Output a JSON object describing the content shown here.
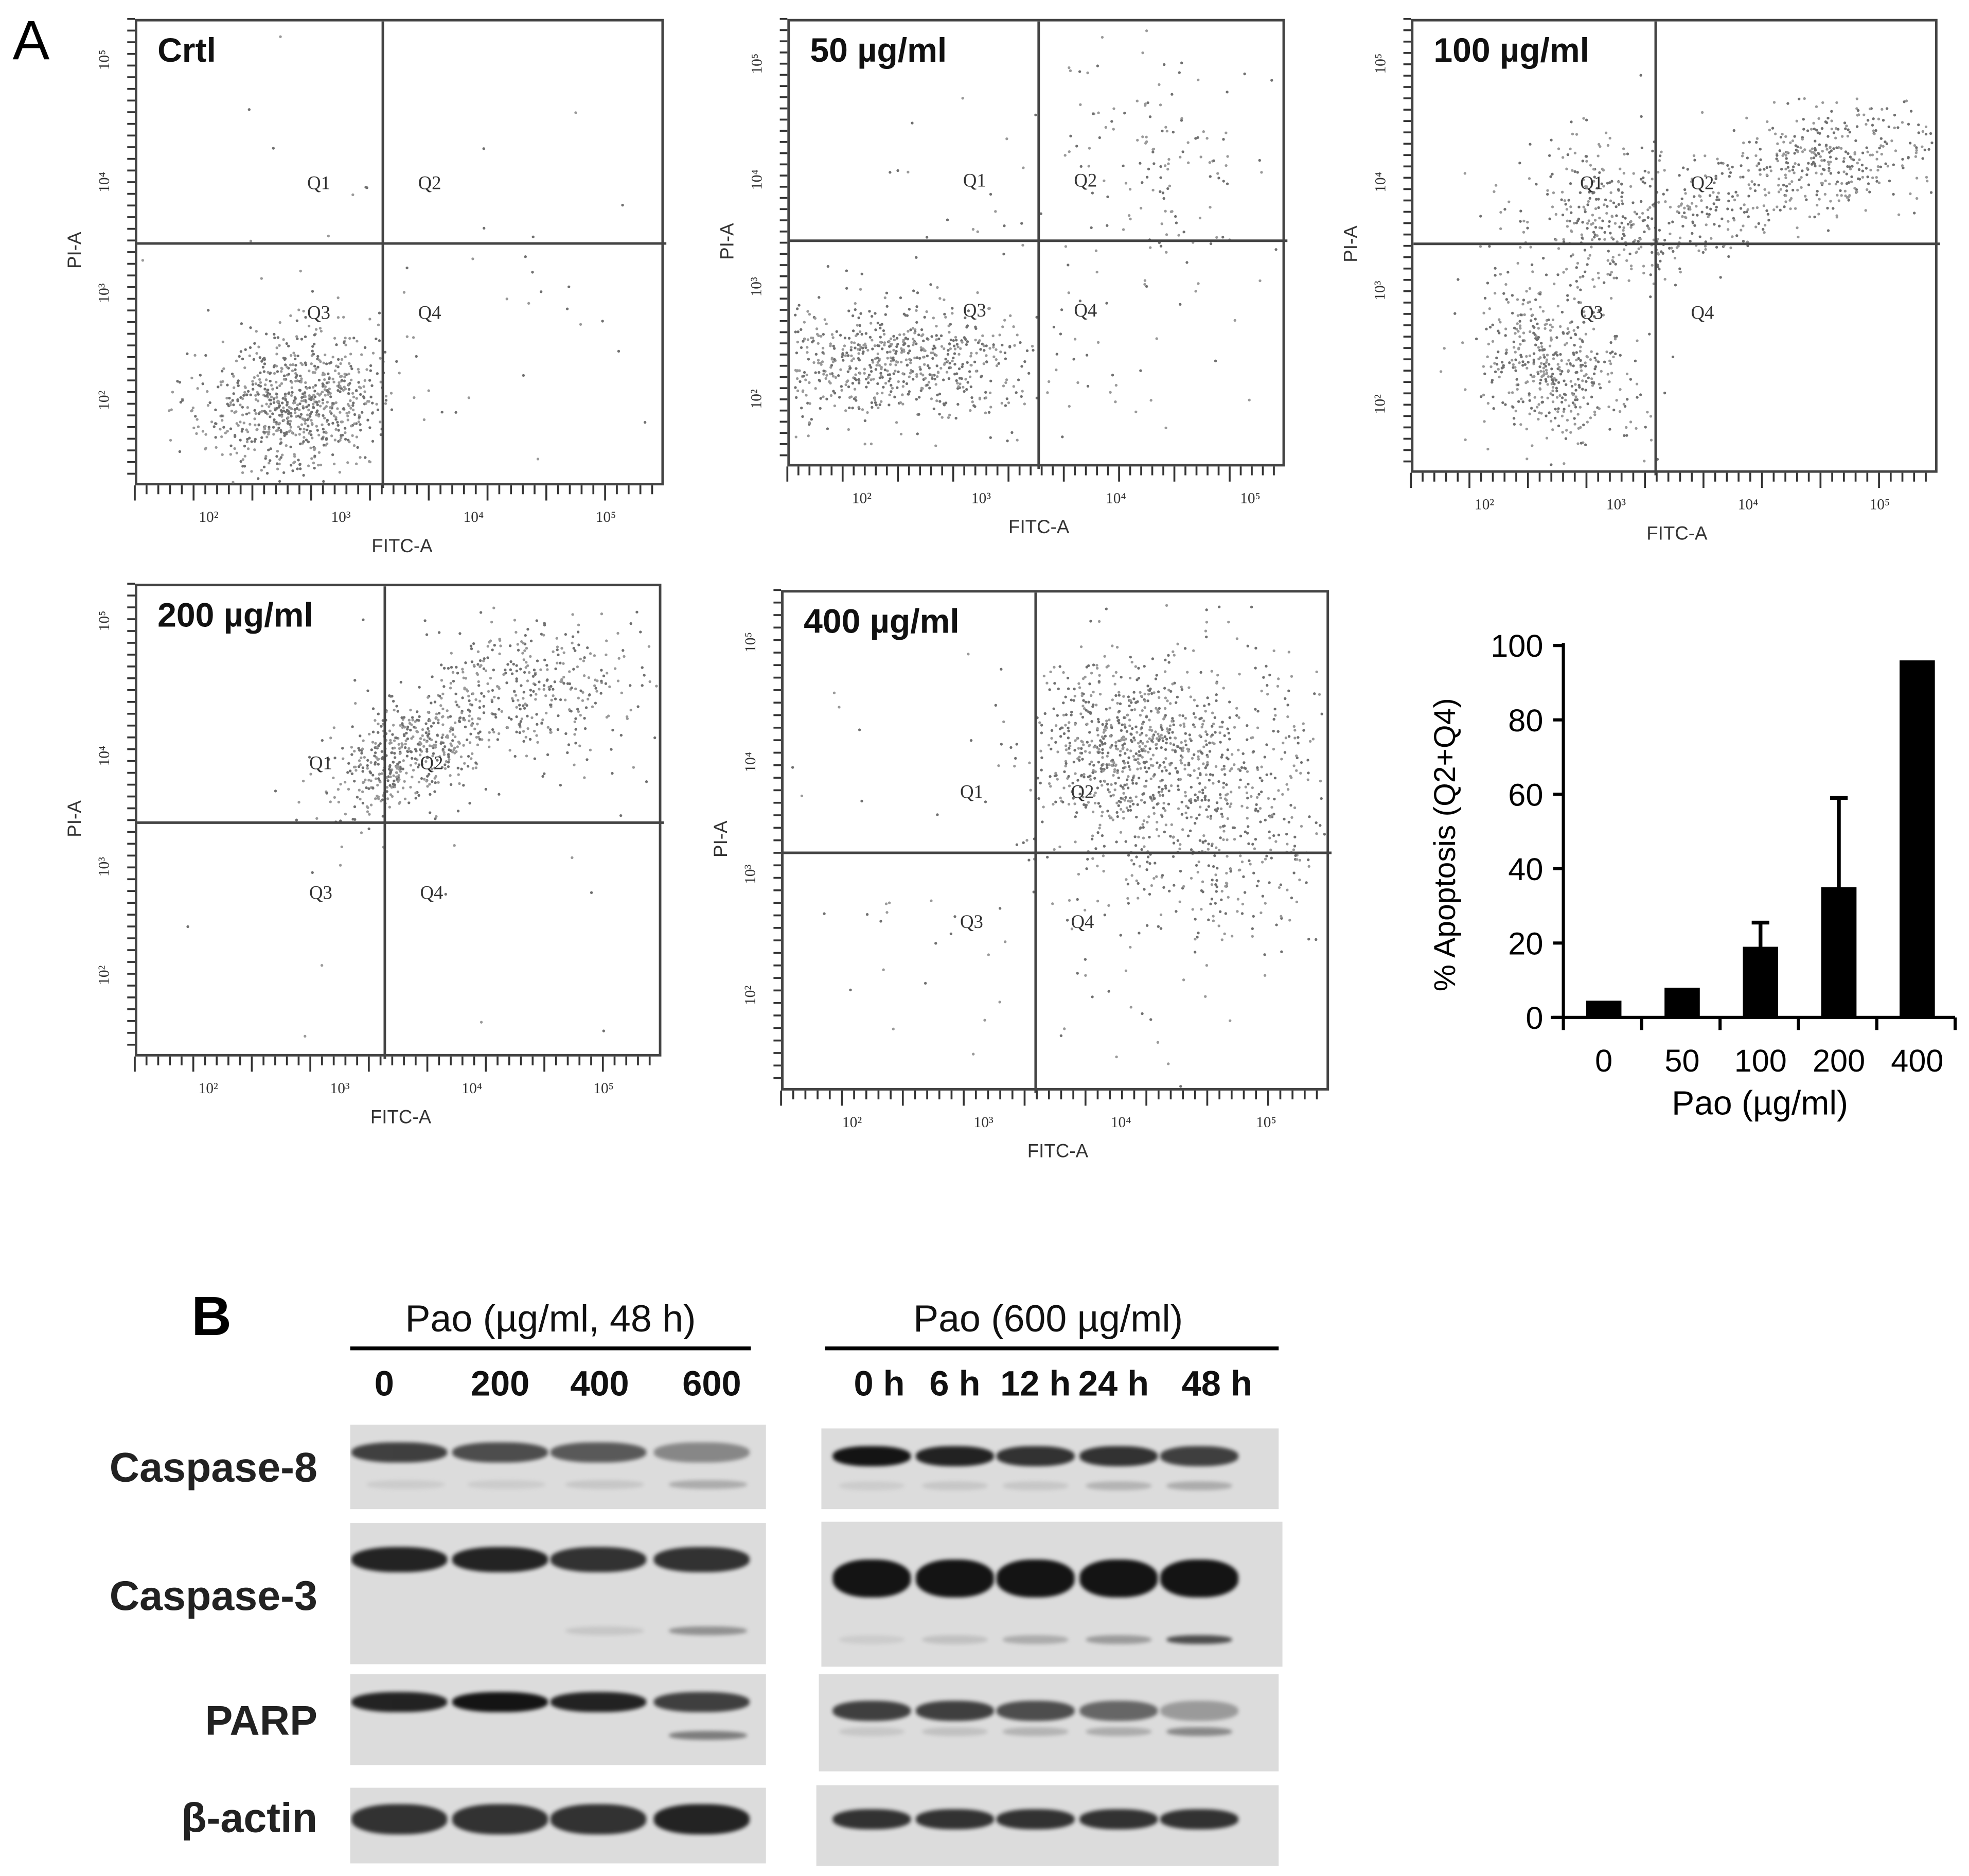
{
  "panel_labels": {
    "a": "A",
    "b": "B"
  },
  "flow_panels": [
    {
      "title": "Crtl",
      "x_label": "FITC-A",
      "y_label": "PI-A",
      "quadrants": [
        "Q1",
        "Q2",
        "Q3",
        "Q4"
      ],
      "x_ticks": [
        "10²",
        "10³",
        "10⁴",
        "10⁵"
      ],
      "y_ticks": [
        "10⁵",
        "10⁴",
        "10³",
        "10²"
      ]
    },
    {
      "title": "50 µg/ml",
      "x_label": "FITC-A",
      "y_label": "PI-A",
      "quadrants": [
        "Q1",
        "Q2",
        "Q3",
        "Q4"
      ],
      "x_ticks": [
        "10²",
        "10³",
        "10⁴",
        "10⁵"
      ],
      "y_ticks": [
        "10⁵",
        "10⁴",
        "10³",
        "10²"
      ]
    },
    {
      "title": "100 µg/ml",
      "x_label": "FITC-A",
      "y_label": "PI-A",
      "quadrants": [
        "Q1",
        "Q2",
        "Q3",
        "Q4"
      ],
      "x_ticks": [
        "10²",
        "10³",
        "10⁴",
        "10⁵"
      ],
      "y_ticks": [
        "10⁵",
        "10⁴",
        "10³",
        "10²"
      ]
    },
    {
      "title": "200 µg/ml",
      "x_label": "FITC-A",
      "y_label": "PI-A",
      "quadrants": [
        "Q1",
        "Q2",
        "Q3",
        "Q4"
      ],
      "x_ticks": [
        "10²",
        "10³",
        "10⁴",
        "10⁵"
      ],
      "y_ticks": [
        "10⁵",
        "10⁴",
        "10³",
        "10²"
      ]
    },
    {
      "title": "400 µg/ml",
      "x_label": "FITC-A",
      "y_label": "PI-A",
      "quadrants": [
        "Q1",
        "Q2",
        "Q3",
        "Q4"
      ],
      "x_ticks": [
        "10²",
        "10³",
        "10⁴",
        "10⁵"
      ],
      "y_ticks": [
        "10⁵",
        "10⁴",
        "10³",
        "10²"
      ]
    }
  ],
  "chart_data": {
    "type": "bar",
    "categories": [
      "0",
      "50",
      "100",
      "200",
      "400"
    ],
    "values": [
      4.5,
      8,
      19,
      35,
      96
    ],
    "error_upper": [
      null,
      null,
      25.5,
      59,
      null
    ],
    "xlabel": "Pao (µg/ml)",
    "ylabel": "%  Apoptosis  (Q2+Q4)",
    "ylim": [
      0,
      100
    ],
    "y_ticks": [
      "0",
      "20",
      "40",
      "60",
      "80",
      "100"
    ],
    "bar_color": "#000000",
    "grid": false
  },
  "western_blot": {
    "left": {
      "header": "Pao (µg/ml, 48 h)",
      "lanes": [
        "0",
        "200",
        "400",
        "600"
      ]
    },
    "right": {
      "header": "Pao (600 µg/ml)",
      "lanes": [
        "0 h",
        "6 h",
        "12 h",
        "24 h",
        "48 h"
      ]
    },
    "rows": [
      {
        "label": "Caspase-8",
        "left_main": [
          0.85,
          0.8,
          0.75,
          0.55
        ],
        "left_cleaved": [
          0.1,
          0.1,
          0.15,
          0.35
        ],
        "right_main": [
          1,
          0.95,
          0.9,
          0.9,
          0.85
        ],
        "right_cleaved": [
          0.1,
          0.15,
          0.15,
          0.3,
          0.35
        ]
      },
      {
        "label": "Caspase-3",
        "left_main": [
          0.95,
          0.95,
          0.9,
          0.9
        ],
        "left_cleaved": [
          0.05,
          0.05,
          0.15,
          0.5
        ],
        "right_main": [
          1,
          1,
          1,
          1,
          1
        ],
        "right_cleaved": [
          0.1,
          0.2,
          0.35,
          0.45,
          0.8
        ]
      },
      {
        "label": "PARP",
        "left_main": [
          0.95,
          1,
          0.95,
          0.85
        ],
        "left_cleaved": [
          0.05,
          0.05,
          0.05,
          0.6
        ],
        "right_main": [
          0.85,
          0.85,
          0.8,
          0.7,
          0.45
        ],
        "right_cleaved": [
          0.15,
          0.2,
          0.3,
          0.35,
          0.55
        ]
      },
      {
        "label": "β-actin",
        "left_main": [
          0.9,
          0.9,
          0.9,
          0.95
        ],
        "left_cleaved": [
          0,
          0,
          0,
          0
        ],
        "right_main": [
          0.9,
          0.9,
          0.9,
          0.9,
          0.9
        ],
        "right_cleaved": [
          0,
          0,
          0,
          0,
          0
        ]
      }
    ]
  }
}
